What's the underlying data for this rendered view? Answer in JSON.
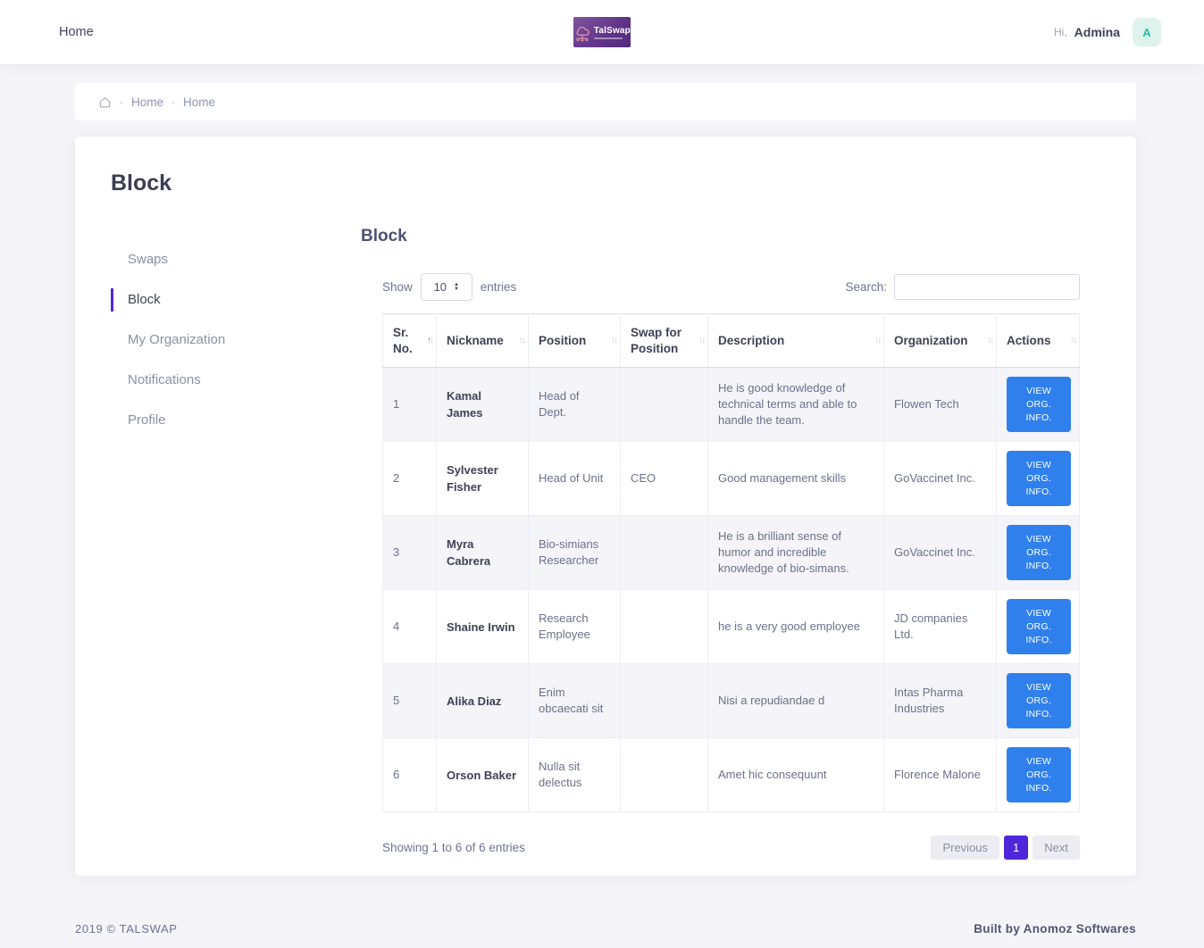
{
  "colors": {
    "brand_purple": "#5e3187",
    "accent_violet": "#4f27da",
    "action_blue": "#2f80ed",
    "avatar_teal": "#27bfa3",
    "avatar_bg": "#def3ec",
    "sidebar_active_bar": "#5226dc"
  },
  "navbar": {
    "home_label": "Home",
    "logo_title": "TalSwap",
    "greeting": "Hi,",
    "username": "Admina",
    "avatar_letter": "A"
  },
  "breadcrumb": {
    "separator": "-",
    "items": [
      "Home",
      "Home"
    ]
  },
  "page": {
    "title": "Block"
  },
  "sidebar": {
    "items": [
      {
        "label": "Swaps",
        "active": false
      },
      {
        "label": "Block",
        "active": true
      },
      {
        "label": "My Organization",
        "active": false
      },
      {
        "label": "Notifications",
        "active": false
      },
      {
        "label": "Profile",
        "active": false
      }
    ]
  },
  "panel": {
    "heading": "Block",
    "length_menu": {
      "show_label": "Show",
      "selected": "10",
      "entries_label": "entries"
    },
    "search_label": "Search:",
    "table": {
      "columns": [
        "Sr. No.",
        "Nickname",
        "Position",
        "Swap for Position",
        "Description",
        "Organization",
        "Actions"
      ],
      "action_label": "VIEW ORG. INFO.",
      "rows": [
        {
          "sr": "1",
          "nickname": "Kamal James",
          "position": "Head of Dept.",
          "swap_for_position": "",
          "description": "He is good knowledge of technical terms and able to handle the team.",
          "organization": "Flowen Tech"
        },
        {
          "sr": "2",
          "nickname": "Sylvester Fisher",
          "position": "Head of Unit",
          "swap_for_position": "CEO",
          "description": "Good management skills",
          "organization": "GoVaccinet Inc."
        },
        {
          "sr": "3",
          "nickname": "Myra Cabrera",
          "position": "Bio-simians Researcher",
          "swap_for_position": "",
          "description": "He is a brilliant sense of humor and incredible knowledge of bio-simans.",
          "organization": "GoVaccinet Inc."
        },
        {
          "sr": "4",
          "nickname": "Shaine Irwin",
          "position": "Research Employee",
          "swap_for_position": "",
          "description": "he is a very good employee",
          "organization": "JD companies Ltd."
        },
        {
          "sr": "5",
          "nickname": "Alika Diaz",
          "position": "Enim obcaecati sit",
          "swap_for_position": "",
          "description": "Nisi a repudiandae d",
          "organization": "Intas Pharma Industries"
        },
        {
          "sr": "6",
          "nickname": "Orson Baker",
          "position": "Nulla sit delectus",
          "swap_for_position": "",
          "description": "Amet hic consequunt",
          "organization": "Florence Malone"
        }
      ]
    },
    "info": "Showing 1 to 6 of 6 entries",
    "pagination": {
      "previous": "Previous",
      "current": "1",
      "next": "Next"
    }
  },
  "footer": {
    "left": "2019 © TALSWAP",
    "right": "Built by Anomoz Softwares"
  }
}
